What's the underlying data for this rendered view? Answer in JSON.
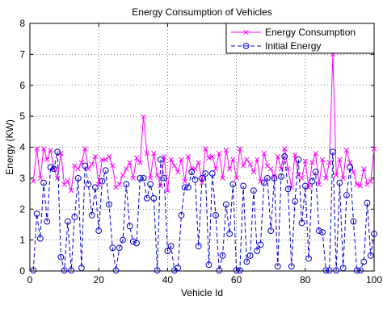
{
  "chart_data": {
    "type": "line",
    "title": "Energy Consumption of Vehicles",
    "xlabel": "Vehicle Id",
    "ylabel": "Energy (KW)",
    "xlim": [
      0,
      100
    ],
    "ylim": [
      0,
      8
    ],
    "xticks": [
      0,
      20,
      40,
      60,
      80,
      100
    ],
    "yticks": [
      0,
      1,
      2,
      3,
      4,
      5,
      6,
      7,
      8
    ],
    "grid": true,
    "legend_position": "top-right",
    "series": [
      {
        "name": "Energy Consumption",
        "color": "#ff00ff",
        "line_style": "solid",
        "marker": "x",
        "x": [
          1,
          2,
          3,
          4,
          5,
          6,
          7,
          8,
          9,
          10,
          11,
          12,
          13,
          14,
          15,
          16,
          17,
          18,
          19,
          20,
          21,
          22,
          23,
          24,
          25,
          26,
          27,
          28,
          29,
          30,
          31,
          32,
          33,
          34,
          35,
          36,
          37,
          38,
          39,
          40,
          41,
          42,
          43,
          44,
          45,
          46,
          47,
          48,
          49,
          50,
          51,
          52,
          53,
          54,
          55,
          56,
          57,
          58,
          59,
          60,
          61,
          62,
          63,
          64,
          65,
          66,
          67,
          68,
          69,
          70,
          71,
          72,
          73,
          74,
          75,
          76,
          77,
          78,
          79,
          80,
          81,
          82,
          83,
          84,
          85,
          86,
          87,
          88,
          89,
          90,
          91,
          92,
          93,
          94,
          95,
          96,
          97,
          98,
          99,
          100
        ],
        "y": [
          2.9,
          3.95,
          3.0,
          3.95,
          3.6,
          3.9,
          3.3,
          3.0,
          3.8,
          2.8,
          2.9,
          2.6,
          3.4,
          3.3,
          3.5,
          3.95,
          3.3,
          3.45,
          3.7,
          2.8,
          3.6,
          3.6,
          3.7,
          3.4,
          2.7,
          2.8,
          3.1,
          3.3,
          3.5,
          3.0,
          3.65,
          3.5,
          4.98,
          3.8,
          3.0,
          3.8,
          3.1,
          2.75,
          3.7,
          2.6,
          3.6,
          3.4,
          3.2,
          3.6,
          2.9,
          3.7,
          3.3,
          3.3,
          3.5,
          2.85,
          3.95,
          3.65,
          3.7,
          3.3,
          3.8,
          3.0,
          3.9,
          3.3,
          3.6,
          3.0,
          3.95,
          3.4,
          3.6,
          3.45,
          3.2,
          3.6,
          2.9,
          3.8,
          3.4,
          3.3,
          3.05,
          3.7,
          3.3,
          3.95,
          3.3,
          2.7,
          3.75,
          3.1,
          3.0,
          3.55,
          2.7,
          3.5,
          3.8,
          2.8,
          3.6,
          3.0,
          3.5,
          7.0,
          3.1,
          3.6,
          3.0,
          3.9,
          3.5,
          3.2,
          2.8,
          2.75,
          3.3,
          2.8,
          2.9,
          3.95
        ]
      },
      {
        "name": "Initial Energy",
        "color": "#0000cc",
        "line_style": "dashed",
        "marker": "o",
        "x": [
          1,
          2,
          3,
          4,
          5,
          6,
          7,
          8,
          9,
          10,
          11,
          12,
          13,
          14,
          15,
          16,
          17,
          18,
          19,
          20,
          21,
          22,
          23,
          24,
          25,
          26,
          27,
          28,
          29,
          30,
          31,
          32,
          33,
          34,
          35,
          36,
          37,
          38,
          39,
          40,
          41,
          42,
          43,
          44,
          45,
          46,
          47,
          48,
          49,
          50,
          51,
          52,
          53,
          54,
          55,
          56,
          57,
          58,
          59,
          60,
          61,
          62,
          63,
          64,
          65,
          66,
          67,
          68,
          69,
          70,
          71,
          72,
          73,
          74,
          75,
          76,
          77,
          78,
          79,
          80,
          81,
          82,
          83,
          84,
          85,
          86,
          87,
          88,
          89,
          90,
          91,
          92,
          93,
          94,
          95,
          96,
          97,
          98,
          99,
          100
        ],
        "y": [
          0.02,
          1.85,
          1.05,
          2.85,
          1.6,
          3.35,
          3.3,
          3.85,
          0.45,
          0.02,
          1.6,
          0.02,
          1.75,
          3.0,
          0.1,
          3.4,
          2.8,
          1.8,
          2.7,
          1.3,
          2.9,
          3.25,
          2.15,
          0.75,
          0.02,
          0.75,
          1.0,
          2.8,
          1.45,
          0.95,
          0.9,
          3.0,
          3.0,
          2.35,
          2.8,
          2.35,
          0.02,
          3.6,
          3.0,
          0.65,
          0.8,
          0.02,
          0.1,
          1.8,
          2.7,
          2.7,
          3.2,
          2.95,
          0.8,
          3.0,
          3.15,
          0.2,
          3.15,
          1.8,
          0.02,
          0.5,
          2.15,
          1.2,
          2.8,
          0.02,
          0.02,
          2.75,
          0.3,
          0.5,
          2.6,
          0.65,
          0.85,
          2.85,
          3.0,
          1.3,
          3.0,
          0.15,
          3.05,
          3.7,
          2.65,
          0.15,
          2.25,
          3.6,
          1.55,
          2.75,
          0.4,
          2.9,
          3.2,
          1.3,
          1.25,
          0.02,
          0.02,
          3.85,
          0.02,
          2.85,
          0.1,
          2.45,
          3.35,
          1.6,
          0.02,
          0.02,
          0.3,
          2.2,
          0.5,
          1.2
        ]
      }
    ]
  }
}
